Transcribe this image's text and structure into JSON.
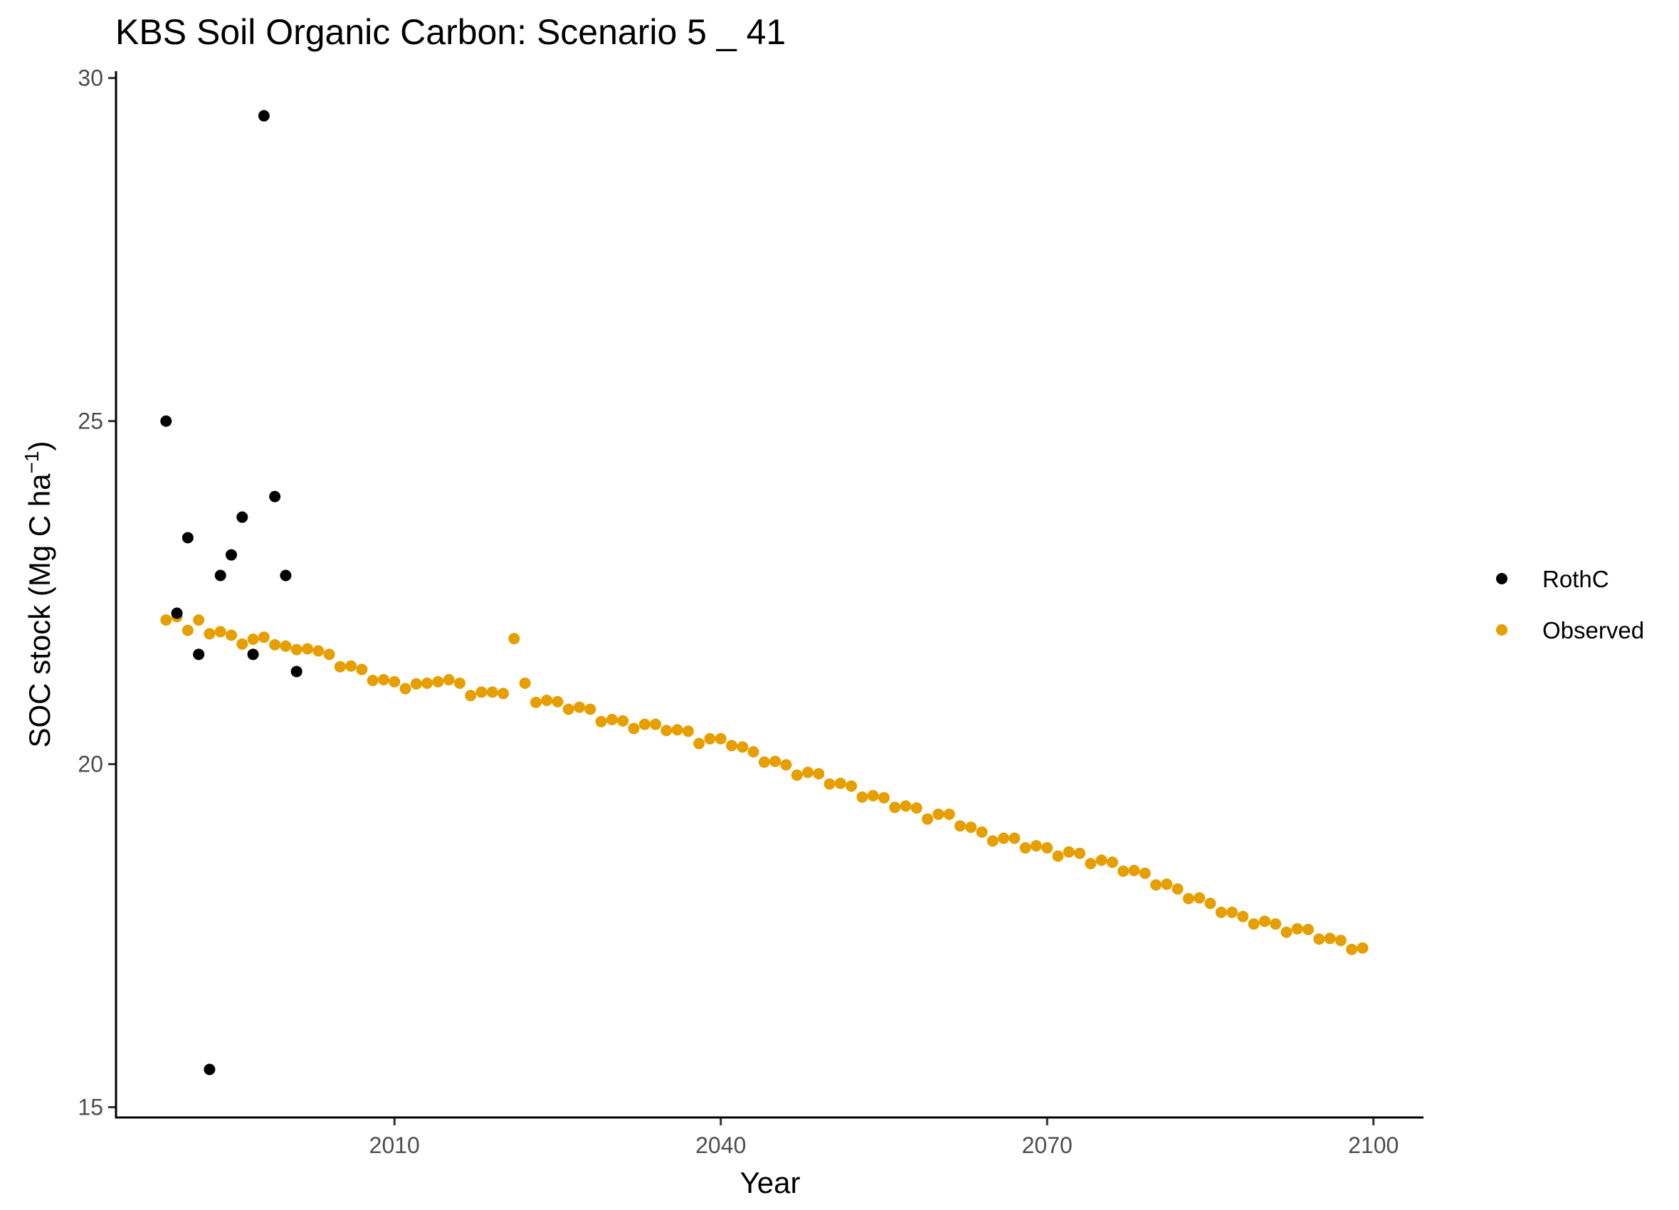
{
  "chart_data": {
    "type": "scatter",
    "title": "KBS Soil Organic Carbon: Scenario  5 _ 41",
    "xlabel": "Year",
    "ylabel_main": "SOC stock (Mg C ha",
    "ylabel_sup": "−1",
    "ylabel_close": ")",
    "xlim": [
      1984.4,
      2104.6
    ],
    "ylim": [
      14.85,
      30.1
    ],
    "xticks": [
      2010,
      2040,
      2070,
      2100
    ],
    "yticks": [
      15,
      20,
      25,
      30
    ],
    "grid": false,
    "legend_position": "right",
    "series": [
      {
        "name": "RothC",
        "color": "#000000",
        "x": [
          1989,
          1990,
          1991,
          1992,
          1993,
          1994,
          1995,
          1996,
          1997,
          1998,
          1999,
          2000,
          2001
        ],
        "y": [
          25.0,
          22.2,
          23.3,
          21.6,
          15.55,
          22.75,
          23.05,
          23.6,
          21.6,
          29.45,
          23.9,
          22.75,
          21.35
        ]
      },
      {
        "name": "Observed",
        "color": "#E69F00",
        "x": [
          1989,
          1990,
          1991,
          1992,
          1993,
          1994,
          1995,
          1996,
          1997,
          1998,
          1999,
          2000,
          2001,
          2002,
          2003,
          2004,
          2005,
          2006,
          2007,
          2008,
          2009,
          2010,
          2011,
          2012,
          2013,
          2014,
          2015,
          2016,
          2017,
          2018,
          2019,
          2020,
          2021,
          2022,
          2023,
          2024,
          2025,
          2026,
          2027,
          2028,
          2029,
          2030,
          2031,
          2032,
          2033,
          2034,
          2035,
          2036,
          2037,
          2038,
          2039,
          2040,
          2041,
          2042,
          2043,
          2044,
          2045,
          2046,
          2047,
          2048,
          2049,
          2050,
          2051,
          2052,
          2053,
          2054,
          2055,
          2056,
          2057,
          2058,
          2059,
          2060,
          2061,
          2062,
          2063,
          2064,
          2065,
          2066,
          2067,
          2068,
          2069,
          2070,
          2071,
          2072,
          2073,
          2074,
          2075,
          2076,
          2077,
          2078,
          2079,
          2080,
          2081,
          2082,
          2083,
          2084,
          2085,
          2086,
          2087,
          2088,
          2089,
          2090,
          2091,
          2092,
          2093,
          2094,
          2095,
          2096,
          2097,
          2098,
          2099
        ],
        "y": [
          22.1,
          22.15,
          21.95,
          22.1,
          21.9,
          21.93,
          21.88,
          21.75,
          21.82,
          21.85,
          21.74,
          21.72,
          21.67,
          21.68,
          21.65,
          21.6,
          21.42,
          21.43,
          21.38,
          21.22,
          21.23,
          21.2,
          21.1,
          21.17,
          21.18,
          21.2,
          21.23,
          21.18,
          21.0,
          21.05,
          21.05,
          21.03,
          21.83,
          21.18,
          20.9,
          20.93,
          20.91,
          20.8,
          20.83,
          20.8,
          20.62,
          20.65,
          20.63,
          20.52,
          20.58,
          20.58,
          20.49,
          20.5,
          20.48,
          20.3,
          20.37,
          20.37,
          20.27,
          20.25,
          20.18,
          20.03,
          20.04,
          19.99,
          19.84,
          19.88,
          19.86,
          19.71,
          19.72,
          19.68,
          19.52,
          19.54,
          19.51,
          19.37,
          19.39,
          19.36,
          19.2,
          19.27,
          19.27,
          19.1,
          19.08,
          19.01,
          18.88,
          18.92,
          18.92,
          18.78,
          18.81,
          18.78,
          18.66,
          18.72,
          18.7,
          18.55,
          18.6,
          18.57,
          18.44,
          18.45,
          18.41,
          18.24,
          18.25,
          18.18,
          18.04,
          18.05,
          17.97,
          17.84,
          17.84,
          17.78,
          17.67,
          17.71,
          17.67,
          17.55,
          17.6,
          17.59,
          17.45,
          17.46,
          17.43,
          17.3,
          17.32
        ]
      }
    ]
  }
}
